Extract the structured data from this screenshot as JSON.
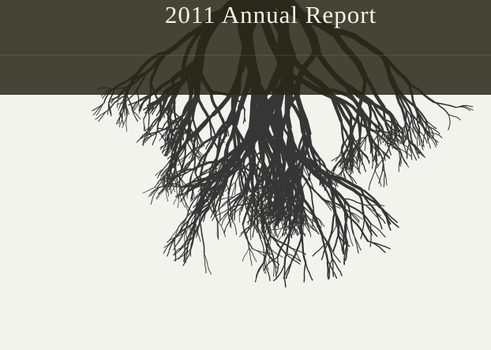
{
  "header": {
    "title": "2011 Annual Report"
  }
}
